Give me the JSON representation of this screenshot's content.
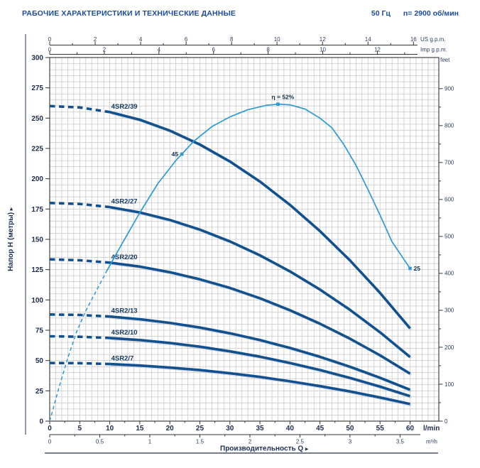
{
  "header": {
    "title": "РАБОЧИЕ ХАРАКТЕРИСТИКИ И ТЕХНИЧЕСКИЕ ДАННЫЕ",
    "frequency": "50 Гц",
    "speed": "n= 2900 об/мин"
  },
  "colors": {
    "header_text": "#1b4a9b",
    "pump_curve": "#11518f",
    "efficiency_curve": "#2d9ad6",
    "grid": "#c7c7c7",
    "plot_border": "#444444",
    "dark_label": "#1c2b4e"
  },
  "chart_data": {
    "type": "line",
    "x_axis": {
      "title": "Производительность Q",
      "arrow": "▸",
      "range_lmin": [
        0,
        60
      ],
      "bottom_scales": [
        {
          "unit": "l/min",
          "ticks": [
            0,
            5,
            10,
            15,
            20,
            25,
            30,
            35,
            40,
            45,
            50,
            55,
            60
          ],
          "minor_step_lmin": 2.5
        },
        {
          "unit": "m³/h",
          "ticks": [
            0,
            0.5,
            1,
            1.5,
            2,
            2.5,
            3,
            3.5
          ],
          "minor_step": 0.25,
          "to_lmin": 16.6667
        }
      ],
      "top_scales": [
        {
          "unit": "US g.p.m.",
          "ticks": [
            0,
            2,
            4,
            6,
            8,
            10,
            12,
            14,
            16
          ],
          "minor_step": 1,
          "to_lmin": 3.7854
        },
        {
          "unit": "Imp g.p.m.",
          "ticks": [
            0,
            2,
            4,
            6,
            8,
            10,
            12
          ],
          "minor_max": 13,
          "minor_step": 1,
          "to_lmin": 4.5461
        }
      ]
    },
    "y_axis": {
      "title": "Напор H (метры)",
      "arrow": "▸",
      "range_m": [
        0,
        300
      ],
      "ticks_m": [
        0,
        25,
        50,
        75,
        100,
        125,
        150,
        175,
        200,
        225,
        250,
        275,
        300
      ],
      "right_scale": {
        "unit": "feet",
        "ticks": [
          0,
          100,
          200,
          300,
          400,
          500,
          600,
          700,
          800,
          900
        ],
        "minor_step": 50,
        "to_m": 0.3048
      }
    },
    "grid": {
      "x_step_lmin": 1,
      "y_step_m": 5
    },
    "dash_until_q_lmin": 10,
    "q_points_lmin": [
      0,
      5,
      10,
      15,
      20,
      25,
      30,
      35,
      40,
      45,
      50,
      55,
      60
    ],
    "series": [
      {
        "name": "4SR2/39",
        "h_m": [
          260.0,
          258.8,
          255.0,
          248.7,
          239.7,
          228.2,
          214.2,
          197.7,
          178.5,
          156.8,
          132.6,
          105.8,
          76.5
        ]
      },
      {
        "name": "4SR2/27",
        "h_m": [
          180.0,
          179.2,
          176.6,
          172.2,
          166.0,
          158.0,
          148.3,
          136.8,
          123.6,
          108.6,
          91.8,
          73.3,
          52.9
        ]
      },
      {
        "name": "4SR2/20",
        "h_m": [
          133.5,
          132.7,
          130.8,
          127.5,
          122.9,
          117.0,
          109.9,
          101.4,
          91.5,
          80.4,
          68.0,
          54.3,
          39.2
        ]
      },
      {
        "name": "4SR2/13",
        "h_m": [
          88.0,
          87.6,
          86.3,
          84.1,
          81.1,
          77.2,
          72.5,
          66.9,
          60.4,
          53.1,
          44.9,
          35.8,
          25.9
        ]
      },
      {
        "name": "4SR2/10",
        "h_m": [
          70.0,
          69.6,
          68.6,
          66.9,
          64.5,
          61.4,
          57.6,
          53.2,
          48.0,
          42.2,
          35.7,
          28.5,
          20.6
        ]
      },
      {
        "name": "4SR2/7",
        "h_m": [
          48.0,
          47.8,
          47.1,
          45.9,
          44.2,
          42.1,
          39.5,
          36.5,
          32.9,
          28.9,
          24.5,
          19.5,
          14.1
        ]
      }
    ],
    "efficiency_curve": {
      "dash_until_q": 9.5,
      "points": [
        [
          0,
          0
        ],
        [
          1.5,
          27
        ],
        [
          3,
          52
        ],
        [
          4.5,
          74
        ],
        [
          6,
          91
        ],
        [
          7.5,
          105
        ],
        [
          9.5,
          124
        ],
        [
          12,
          146
        ],
        [
          15,
          172
        ],
        [
          18,
          196
        ],
        [
          21,
          215
        ],
        [
          24,
          231
        ],
        [
          27,
          243
        ],
        [
          30,
          251
        ],
        [
          33,
          257
        ],
        [
          36,
          260.5
        ],
        [
          38,
          261.5
        ],
        [
          40,
          261
        ],
        [
          42.5,
          257.5
        ],
        [
          45,
          250
        ],
        [
          47,
          242
        ],
        [
          49,
          228
        ],
        [
          51,
          211
        ],
        [
          53,
          191
        ],
        [
          55,
          170
        ],
        [
          57,
          148
        ],
        [
          58.5,
          137
        ],
        [
          60,
          126
        ]
      ],
      "markers": [
        {
          "label": "45",
          "q": 22,
          "h": 220.3,
          "anchor": "left"
        },
        {
          "label": "η = 52%",
          "q": 38,
          "h": 261.5,
          "anchor": "above"
        },
        {
          "label": "25",
          "q": 60,
          "h": 126,
          "anchor": "right"
        }
      ]
    }
  }
}
